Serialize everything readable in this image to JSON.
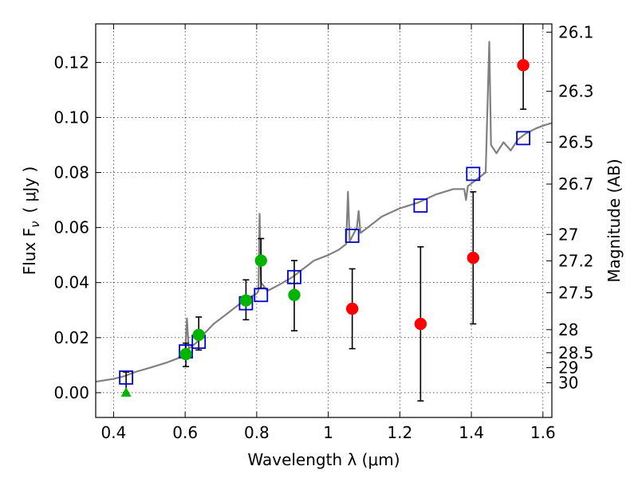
{
  "chart_data": {
    "type": "scatter",
    "xlabel": "Wavelength  λ (μm)",
    "ylabel": "Flux  F",
    "ylabel_sub": "ν",
    "ylabel_unit": "( μJy )",
    "ylabel_right": "Magnitude (AB)",
    "xlim": [
      0.35,
      1.625
    ],
    "ylim": [
      -0.009,
      0.134
    ],
    "grid": true,
    "x_ticks": [
      0.4,
      0.6,
      0.8,
      1.0,
      1.2,
      1.4,
      1.6
    ],
    "x_tick_labels": [
      "0.4",
      "0.6",
      "0.8",
      "1",
      "1.2",
      "1.4",
      "1.6"
    ],
    "y_ticks": [
      0.0,
      0.02,
      0.04,
      0.06,
      0.08,
      0.1,
      0.12
    ],
    "y_tick_labels": [
      "0.00",
      "0.02",
      "0.04",
      "0.06",
      "0.08",
      "0.10",
      "0.12"
    ],
    "right_ticks": [
      {
        "label": "26.1",
        "flux": 0.131
      },
      {
        "label": "26.3",
        "flux": 0.1095
      },
      {
        "label": "26.5",
        "flux": 0.091
      },
      {
        "label": "26.7",
        "flux": 0.0758
      },
      {
        "label": "27",
        "flux": 0.0575
      },
      {
        "label": "27.2",
        "flux": 0.0479
      },
      {
        "label": "27.5",
        "flux": 0.0363
      },
      {
        "label": "28",
        "flux": 0.0229
      },
      {
        "label": "28.5",
        "flux": 0.0145
      },
      {
        "label": "29",
        "flux": 0.0091
      },
      {
        "label": "30",
        "flux": 0.0036
      }
    ],
    "model_spectrum": {
      "color": "#808080",
      "points": [
        [
          0.35,
          0.004
        ],
        [
          0.4,
          0.005
        ],
        [
          0.43,
          0.006
        ],
        [
          0.46,
          0.0075
        ],
        [
          0.5,
          0.009
        ],
        [
          0.55,
          0.011
        ],
        [
          0.58,
          0.0125
        ],
        [
          0.6,
          0.015
        ],
        [
          0.605,
          0.027
        ],
        [
          0.61,
          0.016
        ],
        [
          0.63,
          0.018
        ],
        [
          0.65,
          0.021
        ],
        [
          0.68,
          0.025
        ],
        [
          0.71,
          0.028
        ],
        [
          0.74,
          0.031
        ],
        [
          0.77,
          0.034
        ],
        [
          0.8,
          0.036
        ],
        [
          0.805,
          0.037
        ],
        [
          0.808,
          0.065
        ],
        [
          0.812,
          0.04
        ],
        [
          0.83,
          0.037
        ],
        [
          0.86,
          0.039
        ],
        [
          0.9,
          0.042
        ],
        [
          0.93,
          0.045
        ],
        [
          0.96,
          0.048
        ],
        [
          1.0,
          0.05
        ],
        [
          1.03,
          0.052
        ],
        [
          1.05,
          0.054
        ],
        [
          1.055,
          0.073
        ],
        [
          1.06,
          0.055
        ],
        [
          1.08,
          0.06
        ],
        [
          1.085,
          0.066
        ],
        [
          1.09,
          0.058
        ],
        [
          1.12,
          0.061
        ],
        [
          1.15,
          0.064
        ],
        [
          1.2,
          0.067
        ],
        [
          1.25,
          0.069
        ],
        [
          1.3,
          0.072
        ],
        [
          1.35,
          0.074
        ],
        [
          1.38,
          0.074
        ],
        [
          1.385,
          0.07
        ],
        [
          1.39,
          0.075
        ],
        [
          1.42,
          0.078
        ],
        [
          1.44,
          0.08
        ],
        [
          1.45,
          0.1275
        ],
        [
          1.455,
          0.09
        ],
        [
          1.47,
          0.087
        ],
        [
          1.49,
          0.091
        ],
        [
          1.51,
          0.088
        ],
        [
          1.53,
          0.092
        ],
        [
          1.55,
          0.094
        ],
        [
          1.58,
          0.096
        ],
        [
          1.6,
          0.097
        ],
        [
          1.625,
          0.098
        ]
      ]
    },
    "series": [
      {
        "marker": "open-square",
        "color": "#0000cc",
        "points": [
          {
            "x": 0.435,
            "y": 0.0055
          },
          {
            "x": 0.602,
            "y": 0.015
          },
          {
            "x": 0.638,
            "y": 0.0185
          },
          {
            "x": 0.77,
            "y": 0.0325
          },
          {
            "x": 0.812,
            "y": 0.0355
          },
          {
            "x": 0.905,
            "y": 0.042
          },
          {
            "x": 1.067,
            "y": 0.057
          },
          {
            "x": 1.258,
            "y": 0.068
          },
          {
            "x": 1.405,
            "y": 0.0795
          },
          {
            "x": 1.545,
            "y": 0.0925
          }
        ]
      },
      {
        "marker": "filled-circle",
        "color": "#00b400",
        "points": [
          {
            "x": 0.602,
            "y": 0.014,
            "err_low": 0.0045,
            "err_high": 0.004
          },
          {
            "x": 0.638,
            "y": 0.021,
            "err_low": 0.0055,
            "err_high": 0.0065
          },
          {
            "x": 0.77,
            "y": 0.0335,
            "err_low": 0.007,
            "err_high": 0.0075
          },
          {
            "x": 0.812,
            "y": 0.048,
            "err_low": 0.01,
            "err_high": 0.008
          },
          {
            "x": 0.905,
            "y": 0.0355,
            "err_low": 0.013,
            "err_high": 0.0125
          }
        ]
      },
      {
        "marker": "filled-triangle",
        "color": "#00b400",
        "points": [
          {
            "x": 0.435,
            "y": 0.0,
            "err_low": 0.0,
            "err_high": 0.0075
          }
        ]
      },
      {
        "marker": "filled-circle",
        "color": "#ff0000",
        "points": [
          {
            "x": 1.067,
            "y": 0.0305,
            "err_low": 0.0145,
            "err_high": 0.0145
          },
          {
            "x": 1.258,
            "y": 0.025,
            "err_low": 0.028,
            "err_high": 0.028
          },
          {
            "x": 1.405,
            "y": 0.049,
            "err_low": 0.024,
            "err_high": 0.024
          },
          {
            "x": 1.545,
            "y": 0.119,
            "err_low": 0.016,
            "err_high": 0.016
          }
        ]
      }
    ]
  }
}
